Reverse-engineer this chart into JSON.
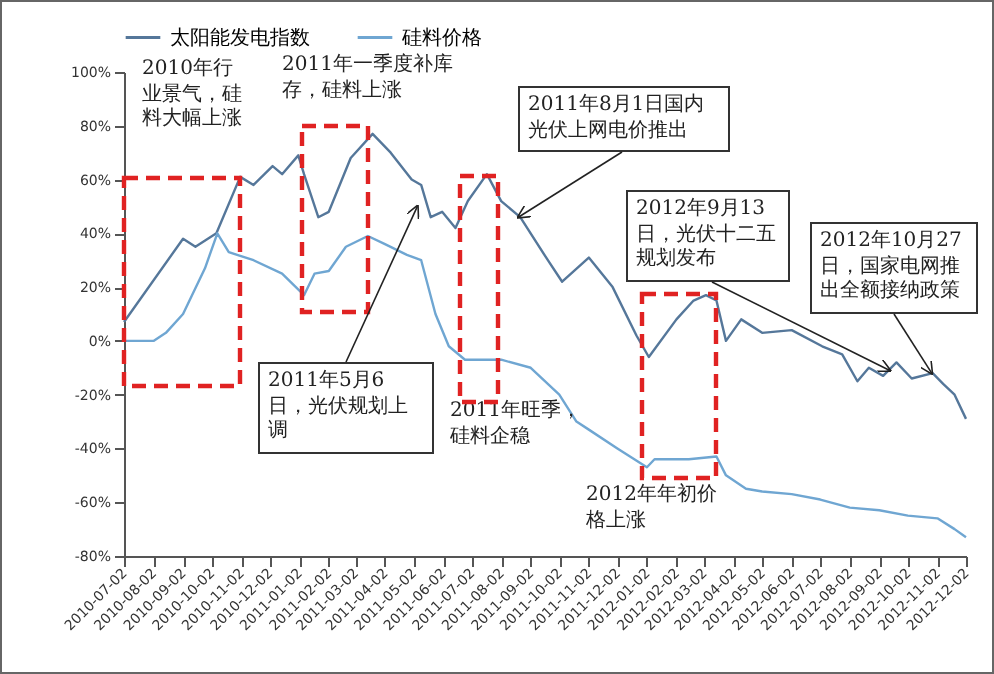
{
  "chart_data": {
    "type": "line",
    "legend": "top",
    "grid": false,
    "xlim": [
      "2010-07-02",
      "2012-12-02"
    ],
    "xticks": [
      "2010-07-02",
      "2010-08-02",
      "2010-09-02",
      "2010-10-02",
      "2010-11-02",
      "2010-12-02",
      "2011-01-02",
      "2011-02-02",
      "2011-03-02",
      "2011-04-02",
      "2011-05-02",
      "2011-06-02",
      "2011-07-02",
      "2011-08-02",
      "2011-09-02",
      "2011-10-02",
      "2011-11-02",
      "2011-12-02",
      "2012-01-02",
      "2012-02-02",
      "2012-03-02",
      "2012-04-02",
      "2012-05-02",
      "2012-06-02",
      "2012-07-02",
      "2012-08-02",
      "2012-09-02",
      "2012-10-02",
      "2012-11-02",
      "2012-12-02"
    ],
    "ylim": [
      -80,
      100
    ],
    "yticks": [
      {
        "value": -80,
        "label": "-80%"
      },
      {
        "value": -60,
        "label": "-60%"
      },
      {
        "value": -40,
        "label": "-40%"
      },
      {
        "value": -20,
        "label": "-20%"
      },
      {
        "value": 0,
        "label": "0%"
      },
      {
        "value": 20,
        "label": "20%"
      },
      {
        "value": 40,
        "label": "40%"
      },
      {
        "value": 60,
        "label": "60%"
      },
      {
        "value": 80,
        "label": "80%"
      },
      {
        "value": 100,
        "label": "100%"
      }
    ],
    "series": [
      {
        "name": "太阳能发电指数",
        "color": "#55779a",
        "x": [
          "2010-07-02",
          "2010-09-02",
          "2010-09-15",
          "2010-10-07",
          "2010-11-01",
          "2010-11-15",
          "2010-12-05",
          "2010-12-15",
          "2011-01-01",
          "2011-01-07",
          "2011-01-22",
          "2011-02-02",
          "2011-02-25",
          "2011-03-20",
          "2011-04-08",
          "2011-04-30",
          "2011-05-10",
          "2011-05-20",
          "2011-06-01",
          "2011-06-15",
          "2011-06-28",
          "2011-07-18",
          "2011-08-02",
          "2011-08-22",
          "2011-09-20",
          "2011-10-05",
          "2011-11-02",
          "2011-11-27",
          "2011-12-22",
          "2012-01-04",
          "2012-02-02",
          "2012-02-20",
          "2012-03-04",
          "2012-03-15",
          "2012-03-25",
          "2012-04-10",
          "2012-05-02",
          "2012-06-02",
          "2012-07-04",
          "2012-07-25",
          "2012-08-10",
          "2012-08-22",
          "2012-09-06",
          "2012-09-20",
          "2012-10-06",
          "2012-10-28",
          "2012-11-08",
          "2012-11-20",
          "2012-12-02"
        ],
        "values": [
          7,
          38,
          35,
          40,
          61,
          58,
          65,
          62,
          69,
          62,
          46,
          48,
          68,
          77,
          70,
          60,
          58,
          46,
          48,
          42,
          52,
          62,
          52,
          46,
          30,
          22,
          31,
          20,
          2,
          -6,
          8,
          15,
          17,
          15,
          0,
          8,
          3,
          4,
          -2,
          -5,
          -15,
          -10,
          -13,
          -8,
          -14,
          -12,
          -16,
          -20,
          -29
        ]
      },
      {
        "name": "硅料价格",
        "color": "#6fa6d2",
        "x": [
          "2010-07-02",
          "2010-08-02",
          "2010-08-15",
          "2010-09-02",
          "2010-09-25",
          "2010-10-08",
          "2010-10-20",
          "2010-11-15",
          "2010-12-15",
          "2011-01-07",
          "2011-01-18",
          "2011-02-02",
          "2011-02-20",
          "2011-03-15",
          "2011-04-02",
          "2011-04-25",
          "2011-05-10",
          "2011-05-25",
          "2011-06-08",
          "2011-06-25",
          "2011-08-02",
          "2011-09-02",
          "2011-10-02",
          "2011-10-20",
          "2011-11-02",
          "2011-12-02",
          "2012-01-02",
          "2012-01-10",
          "2012-02-15",
          "2012-03-15",
          "2012-03-25",
          "2012-04-15",
          "2012-05-02",
          "2012-06-02",
          "2012-07-02",
          "2012-08-02",
          "2012-09-02",
          "2012-10-02",
          "2012-11-02",
          "2012-11-20",
          "2012-12-02"
        ],
        "values": [
          0,
          0,
          3,
          10,
          27,
          40,
          33,
          30,
          25,
          17,
          25,
          26,
          35,
          39,
          36,
          32,
          30,
          10,
          -2,
          -7,
          -7,
          -10,
          -20,
          -30,
          -33,
          -40,
          -47,
          -44,
          -44,
          -43,
          -50,
          -55,
          -56,
          -57,
          -59,
          -62,
          -63,
          -65,
          -66,
          -70,
          -73
        ]
      }
    ],
    "annotations": [
      "2010年行业景气，硅料大幅上涨",
      "2011年一季度补库存，硅料上涨",
      {
        "text": "2011年8月1日国内光伏上网电价推出",
        "x": "2011-08-20",
        "y": 46
      },
      {
        "text": "2011年5月6日，光伏规划上调",
        "x": "2011-05-06",
        "y": 50
      },
      "2011年旺季，硅料企稳",
      "2012年年初价格上涨",
      {
        "text": "2012年9月13日，光伏十二五规划发布",
        "x": "2012-09-13",
        "y": -11
      },
      {
        "text": "2012年10月27日，国家电网推出全额接纳政策",
        "x": "2012-10-27",
        "y": -12
      }
    ]
  }
}
